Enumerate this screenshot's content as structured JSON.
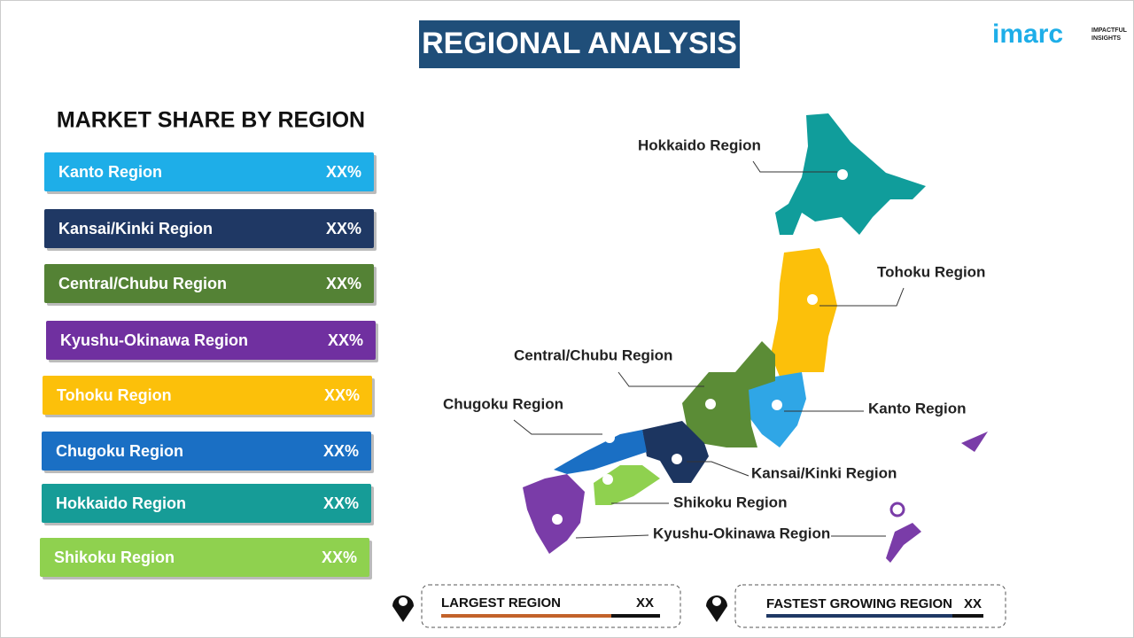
{
  "title": "REGIONAL ANALYSIS",
  "logo": {
    "brand": "imarc",
    "tagline": [
      "IMPACTFUL",
      "INSIGHTS"
    ]
  },
  "market_share": {
    "title": "MARKET SHARE BY REGION",
    "rows": [
      {
        "region": "Kanto Region",
        "share": "XX%",
        "color": "#1eaee8"
      },
      {
        "region": "Kansai/Kinki  Region",
        "share": "XX%",
        "color": "#1f3864"
      },
      {
        "region": "Central/Chubu  Region",
        "share": "XX%",
        "color": "#548235"
      },
      {
        "region": "Kyushu-Okinawa  Region",
        "share": "XX%",
        "color": "#7030a0"
      },
      {
        "region": "Tohoku Region",
        "share": "XX%",
        "color": "#fcc00a"
      },
      {
        "region": "Chugoku Region",
        "share": "XX%",
        "color": "#1a6fc4"
      },
      {
        "region": "Hokkaido  Region",
        "share": "XX%",
        "color": "#169c97"
      },
      {
        "region": "Shikoku Region",
        "share": "XX%",
        "color": "#8fd14f"
      }
    ]
  },
  "map_labels": [
    "Hokkaido Region",
    "Tohoku Region",
    "Central/Chubu Region",
    "Chugoku Region",
    "Kanto Region",
    "Kansai/Kinki Region",
    "Shikoku Region",
    "Kyushu-Okinawa Region"
  ],
  "footer": [
    {
      "label": "LARGEST REGION",
      "value": "XX"
    },
    {
      "label": "FASTEST GROWING REGION",
      "value": "XX"
    }
  ]
}
